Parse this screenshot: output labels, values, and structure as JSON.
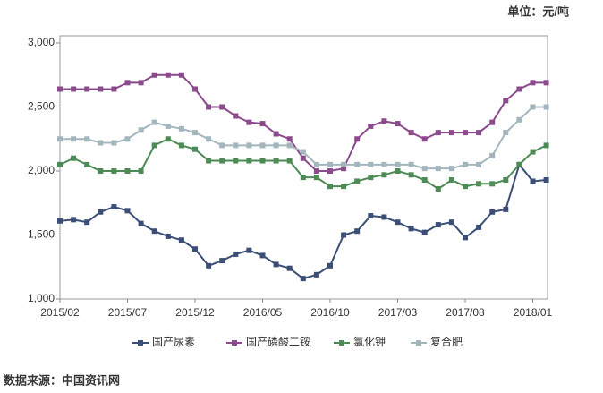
{
  "unit": "单位：元/吨",
  "source": "数据来源：中国资讯网",
  "chart_data": {
    "type": "line",
    "categories": [
      "2015/02",
      null,
      null,
      null,
      null,
      "2015/07",
      null,
      null,
      null,
      null,
      "2015/12",
      null,
      null,
      null,
      null,
      "2016/05",
      null,
      null,
      null,
      null,
      "2016/10",
      null,
      null,
      null,
      null,
      "2017/03",
      null,
      null,
      null,
      null,
      "2017/08",
      null,
      null,
      null,
      null,
      "2018/01",
      null
    ],
    "series": [
      {
        "name": "国产尿素",
        "color": "#3b4e76",
        "values": [
          1610,
          1620,
          1600,
          1680,
          1720,
          1690,
          1590,
          1530,
          1490,
          1460,
          1390,
          1260,
          1300,
          1350,
          1380,
          1340,
          1270,
          1240,
          1160,
          1190,
          1260,
          1500,
          1530,
          1650,
          1640,
          1600,
          1550,
          1520,
          1580,
          1600,
          1480,
          1560,
          1680,
          1700,
          2050,
          1920,
          1930
        ]
      },
      {
        "name": "国产磷酸二铵",
        "color": "#8b4a8b",
        "values": [
          2640,
          2640,
          2640,
          2640,
          2640,
          2690,
          2690,
          2750,
          2750,
          2750,
          2640,
          2500,
          2500,
          2430,
          2380,
          2370,
          2290,
          2250,
          2100,
          2000,
          2000,
          2020,
          2250,
          2350,
          2390,
          2370,
          2300,
          2250,
          2300,
          2300,
          2300,
          2300,
          2380,
          2550,
          2640,
          2690,
          2690
        ]
      },
      {
        "name": "氯化钾",
        "color": "#4e8a56",
        "values": [
          2050,
          2100,
          2050,
          2000,
          2000,
          2000,
          2000,
          2200,
          2250,
          2200,
          2170,
          2080,
          2080,
          2080,
          2080,
          2080,
          2080,
          2080,
          1950,
          1950,
          1880,
          1880,
          1920,
          1950,
          1970,
          2000,
          1970,
          1930,
          1860,
          1930,
          1880,
          1900,
          1900,
          1930,
          2050,
          2150,
          2200
        ]
      },
      {
        "name": "复合肥",
        "color": "#a4b6bd",
        "values": [
          2250,
          2250,
          2250,
          2220,
          2220,
          2250,
          2320,
          2380,
          2350,
          2330,
          2300,
          2250,
          2200,
          2200,
          2200,
          2200,
          2200,
          2200,
          2150,
          2050,
          2050,
          2050,
          2050,
          2050,
          2050,
          2050,
          2050,
          2020,
          2020,
          2020,
          2050,
          2050,
          2120,
          2300,
          2400,
          2500,
          2500
        ]
      }
    ],
    "ylim": [
      1000,
      3000
    ],
    "yticks": [
      {
        "value": 1000,
        "label": "1,000"
      },
      {
        "value": 1500,
        "label": "1,500"
      },
      {
        "value": 2000,
        "label": "2,000"
      },
      {
        "value": 2500,
        "label": "2,500"
      },
      {
        "value": 3000,
        "label": "3,000"
      }
    ],
    "grid": false,
    "legend": "bottom"
  }
}
